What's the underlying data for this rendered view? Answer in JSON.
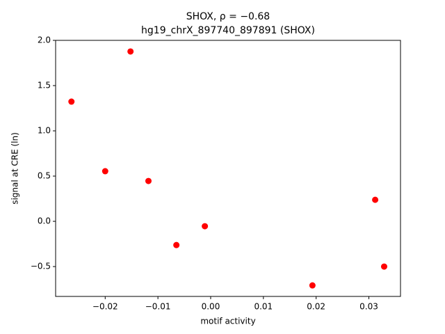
{
  "chart_data": {
    "type": "scatter",
    "title": "SHOX, ρ = −0.68",
    "subtitle": "hg19_chrX_897740_897891 (SHOX)",
    "x_label": "motif activity",
    "y_label": "signal at CRE (ln)",
    "color": "#ff0000",
    "x": [
      -0.0264,
      -0.0152,
      -0.02,
      -0.0118,
      -0.0065,
      -0.0011,
      0.0193,
      0.0312,
      0.0329
    ],
    "y": [
      1.323,
      1.877,
      0.554,
      0.446,
      -0.262,
      -0.054,
      -0.708,
      0.238,
      -0.5
    ],
    "xlim": [
      -0.0294,
      0.036
    ],
    "ylim": [
      -0.83,
      2.0
    ],
    "xticks": [
      {
        "value": -0.02,
        "label": "−0.02"
      },
      {
        "value": -0.01,
        "label": "−0.01"
      },
      {
        "value": 0,
        "label": "0.00"
      },
      0.01,
      0.02,
      0.03
    ],
    "yticks": [
      {
        "value": -0.5,
        "label": "−0.5"
      },
      {
        "value": 0,
        "label": "0.0"
      },
      0.5,
      {
        "value": 1,
        "label": "1.0"
      },
      1.5,
      {
        "value": 2,
        "label": "2.0"
      }
    ]
  }
}
